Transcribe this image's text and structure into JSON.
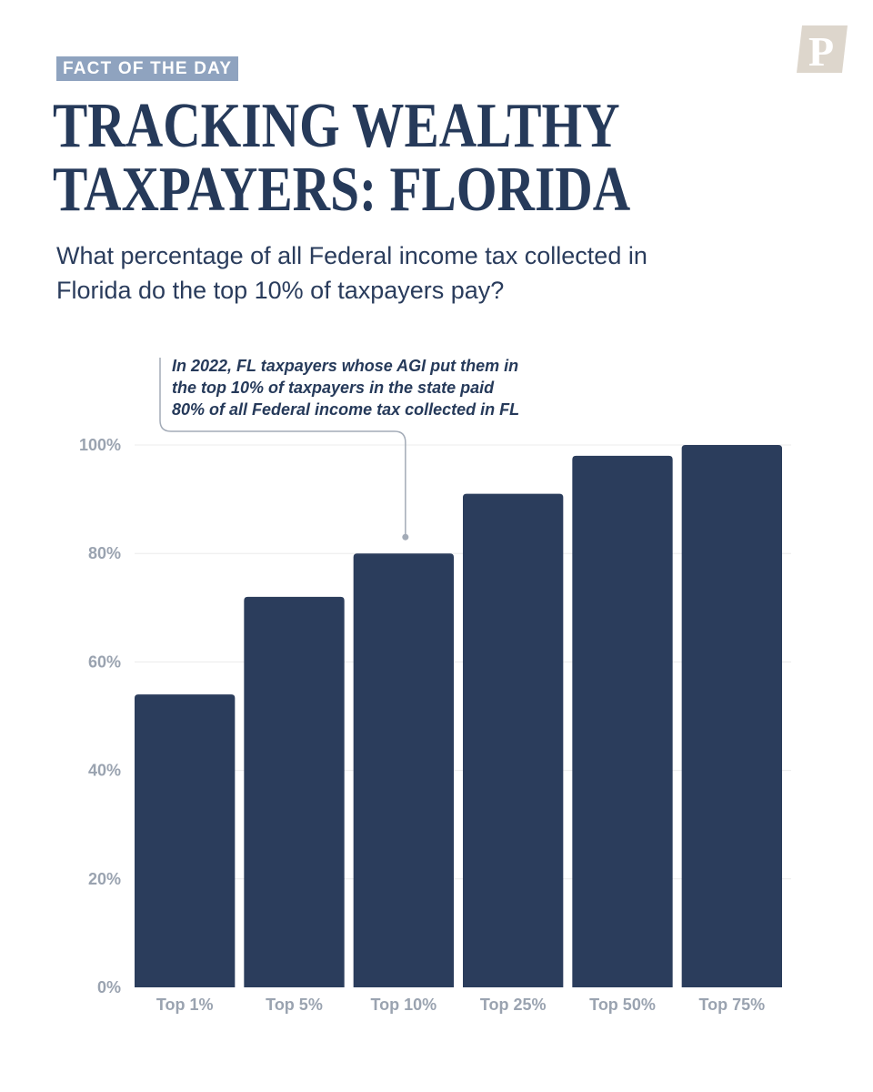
{
  "badge": "FACT OF THE DAY",
  "logo_letter": "P",
  "title": {
    "line1": "TRACKING WEALTHY",
    "line2": "TAXPAYERS: FLORIDA"
  },
  "subtitle": {
    "line1": "What percentage of all Federal income tax collected in",
    "line2": "Florida do the top 10% of taxpayers pay?"
  },
  "annotation": {
    "line1": "In 2022, FL taxpayers whose AGI put them in",
    "line2": "the top 10% of taxpayers in the state paid",
    "line3": "80% of all Federal income tax collected in FL",
    "target_category": "Top 10%"
  },
  "colors": {
    "bar": "#2b3d5c",
    "badge_bg": "#8fa3bf",
    "title": "#263a5a",
    "axis_text": "#9aa3b0",
    "grid": "#ececec",
    "callout_line": "#a3abb7",
    "logo_bg": "#ddd6cc"
  },
  "chart_data": {
    "type": "bar",
    "categories": [
      "Top 1%",
      "Top 5%",
      "Top 10%",
      "Top 25%",
      "Top 50%",
      "Top 75%"
    ],
    "values": [
      54,
      72,
      80,
      91,
      98,
      100
    ],
    "ylim": [
      0,
      100
    ],
    "yticks": [
      0,
      20,
      40,
      60,
      80,
      100
    ],
    "ytick_labels": [
      "0%",
      "20%",
      "40%",
      "60%",
      "80%",
      "100%"
    ],
    "xlabel": "",
    "ylabel": "",
    "grid": true
  }
}
